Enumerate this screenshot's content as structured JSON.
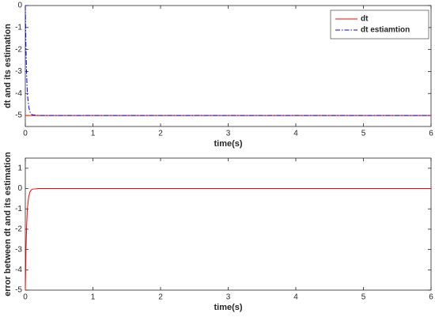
{
  "chart_data": [
    {
      "type": "line",
      "xlabel": "time(s)",
      "ylabel": "dt and its estimation",
      "xlim": [
        0,
        6
      ],
      "xticks": [
        0,
        1,
        2,
        3,
        4,
        5,
        6
      ],
      "ylim": [
        -5.5,
        0
      ],
      "yticks": [
        -5,
        -4,
        -3,
        -2,
        -1,
        0
      ],
      "legend": "upper right",
      "series": [
        {
          "name": "dt",
          "color": "#ff0000",
          "style": "solid",
          "x": [
            0,
            6
          ],
          "values": [
            -5,
            -5
          ]
        },
        {
          "name": "dt estiamtion",
          "color": "#0000ff",
          "style": "dashdot",
          "x": [
            0,
            0.01,
            0.02,
            0.03,
            0.05,
            0.07,
            0.1,
            0.2,
            6
          ],
          "values": [
            0,
            -2,
            -3.2,
            -4,
            -4.6,
            -4.85,
            -4.97,
            -5,
            -5
          ]
        }
      ]
    },
    {
      "type": "line",
      "xlabel": "time(s)",
      "ylabel": "error between dt and its estimation",
      "xlim": [
        0,
        6
      ],
      "xticks": [
        0,
        1,
        2,
        3,
        4,
        5,
        6
      ],
      "ylim": [
        -5,
        1.5
      ],
      "yticks": [
        -5,
        -4,
        -3,
        -2,
        -1,
        0,
        1
      ],
      "series": [
        {
          "color": "#ff0000",
          "style": "solid",
          "x": [
            0,
            0.01,
            0.02,
            0.03,
            0.05,
            0.07,
            0.1,
            0.2,
            6
          ],
          "values": [
            -5,
            -3,
            -1.8,
            -1,
            -0.4,
            -0.15,
            -0.03,
            0,
            0
          ]
        }
      ]
    }
  ]
}
